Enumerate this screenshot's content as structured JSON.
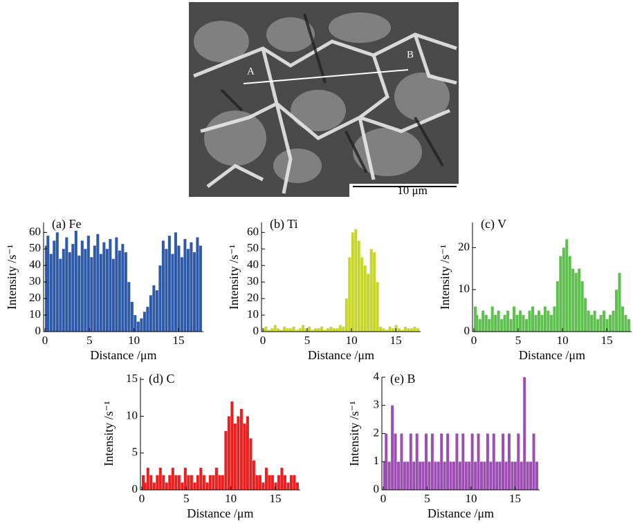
{
  "image": {
    "point_labels": [
      "A",
      "B"
    ],
    "scale_bar": "10 μm"
  },
  "chart_data": [
    {
      "type": "bar",
      "title": "(a) Fe",
      "x_label": "Distance /μm",
      "y_label": "Intensity /s⁻¹",
      "color": "#2e5aa8",
      "x": [
        0,
        0.35,
        0.7,
        1.05,
        1.4,
        1.75,
        2.1,
        2.45,
        2.8,
        3.15,
        3.5,
        3.85,
        4.2,
        4.55,
        4.9,
        5.25,
        5.6,
        5.95,
        6.3,
        6.65,
        7,
        7.35,
        7.7,
        8.05,
        8.4,
        8.75,
        9.1,
        9.45,
        9.8,
        10.15,
        10.5,
        10.85,
        11.2,
        11.55,
        11.9,
        12.25,
        12.6,
        12.95,
        13.3,
        13.65,
        14,
        14.35,
        14.7,
        15.05,
        15.4,
        15.75,
        16.1,
        16.45,
        16.8,
        17.15,
        17.5
      ],
      "values": [
        52,
        58,
        47,
        55,
        60,
        44,
        50,
        57,
        48,
        53,
        61,
        46,
        55,
        50,
        58,
        45,
        52,
        59,
        47,
        54,
        50,
        56,
        44,
        57,
        49,
        53,
        48,
        30,
        18,
        10,
        6,
        8,
        12,
        15,
        22,
        28,
        25,
        40,
        55,
        50,
        58,
        47,
        60,
        52,
        45,
        56,
        50,
        54,
        48,
        57,
        52
      ],
      "xlim": [
        0,
        17.8
      ],
      "ylim": [
        0,
        66
      ],
      "xticks": [
        0,
        5,
        10,
        15
      ],
      "yticks": [
        0,
        10,
        20,
        30,
        40,
        50,
        60
      ]
    },
    {
      "type": "bar",
      "title": "(b) Ti",
      "x_label": "Distance /μm",
      "y_label": "Intensity /s⁻¹",
      "color": "#c8d62a",
      "x": [
        0,
        0.35,
        0.7,
        1.05,
        1.4,
        1.75,
        2.1,
        2.45,
        2.8,
        3.15,
        3.5,
        3.85,
        4.2,
        4.55,
        4.9,
        5.25,
        5.6,
        5.95,
        6.3,
        6.65,
        7,
        7.35,
        7.7,
        8.05,
        8.4,
        8.75,
        9.1,
        9.45,
        9.8,
        10.15,
        10.5,
        10.85,
        11.2,
        11.55,
        11.9,
        12.25,
        12.6,
        12.95,
        13.3,
        13.65,
        14,
        14.35,
        14.7,
        15.05,
        15.4,
        15.75,
        16.1,
        16.45,
        16.8,
        17.15,
        17.5
      ],
      "values": [
        2,
        3,
        1,
        2,
        4,
        2,
        1,
        3,
        2,
        2,
        3,
        1,
        2,
        4,
        2,
        3,
        1,
        2,
        2,
        3,
        1,
        2,
        3,
        2,
        2,
        4,
        3,
        20,
        45,
        60,
        62,
        55,
        45,
        40,
        35,
        50,
        48,
        30,
        3,
        2,
        1,
        3,
        2,
        4,
        2,
        1,
        3,
        2,
        2,
        3,
        2
      ],
      "xlim": [
        0,
        17.8
      ],
      "ylim": [
        0,
        66
      ],
      "xticks": [
        0,
        5,
        10,
        15
      ],
      "yticks": [
        0,
        10,
        20,
        30,
        40,
        50,
        60
      ]
    },
    {
      "type": "bar",
      "title": "(c) V",
      "x_label": "Distance /μm",
      "y_label": "Intensity /s⁻¹",
      "color": "#5fbf4f",
      "x": [
        0,
        0.35,
        0.7,
        1.05,
        1.4,
        1.75,
        2.1,
        2.45,
        2.8,
        3.15,
        3.5,
        3.85,
        4.2,
        4.55,
        4.9,
        5.25,
        5.6,
        5.95,
        6.3,
        6.65,
        7,
        7.35,
        7.7,
        8.05,
        8.4,
        8.75,
        9.1,
        9.45,
        9.8,
        10.15,
        10.5,
        10.85,
        11.2,
        11.55,
        11.9,
        12.25,
        12.6,
        12.95,
        13.3,
        13.65,
        14,
        14.35,
        14.7,
        15.05,
        15.4,
        15.75,
        16.1,
        16.45,
        16.8,
        17.15,
        17.5
      ],
      "values": [
        6,
        4,
        3,
        5,
        4,
        3,
        6,
        4,
        5,
        3,
        4,
        5,
        3,
        6,
        4,
        5,
        4,
        3,
        5,
        6,
        4,
        5,
        4,
        6,
        5,
        4,
        6,
        12,
        18,
        20,
        22,
        18,
        15,
        14,
        15,
        12,
        8,
        5,
        4,
        5,
        3,
        4,
        5,
        3,
        4,
        5,
        10,
        14,
        6,
        4,
        3
      ],
      "xlim": [
        0,
        17.8
      ],
      "ylim": [
        0,
        26
      ],
      "xticks": [
        0,
        5,
        10,
        15
      ],
      "yticks": [
        0,
        10,
        20
      ]
    },
    {
      "type": "bar",
      "title": "(d) C",
      "x_label": "Distance /μm",
      "y_label": "Intensity /s⁻¹",
      "color": "#e8201f",
      "x": [
        0,
        0.35,
        0.7,
        1.05,
        1.4,
        1.75,
        2.1,
        2.45,
        2.8,
        3.15,
        3.5,
        3.85,
        4.2,
        4.55,
        4.9,
        5.25,
        5.6,
        5.95,
        6.3,
        6.65,
        7,
        7.35,
        7.7,
        8.05,
        8.4,
        8.75,
        9.1,
        9.45,
        9.8,
        10.15,
        10.5,
        10.85,
        11.2,
        11.55,
        11.9,
        12.25,
        12.6,
        12.95,
        13.3,
        13.65,
        14,
        14.35,
        14.7,
        15.05,
        15.4,
        15.75,
        16.1,
        16.45,
        16.8,
        17.15,
        17.5
      ],
      "values": [
        2,
        1,
        3,
        2,
        1,
        2,
        3,
        2,
        1,
        2,
        3,
        2,
        2,
        1,
        3,
        2,
        2,
        1,
        2,
        3,
        2,
        1,
        2,
        2,
        3,
        2,
        2,
        8,
        10,
        12,
        9,
        10,
        11,
        9,
        10,
        7,
        4,
        2,
        2,
        1,
        3,
        2,
        2,
        1,
        2,
        3,
        2,
        1,
        2,
        2,
        1
      ],
      "xlim": [
        0,
        17.8
      ],
      "ylim": [
        0,
        15.3
      ],
      "xticks": [
        0,
        5,
        10,
        15
      ],
      "yticks": [
        0,
        5,
        10,
        15
      ]
    },
    {
      "type": "bar",
      "title": "(e) B",
      "x_label": "Distance /μm",
      "y_label": "Intensity /s⁻¹",
      "color": "#9b4fb0",
      "x": [
        0,
        0.35,
        0.7,
        1.05,
        1.4,
        1.75,
        2.1,
        2.45,
        2.8,
        3.15,
        3.5,
        3.85,
        4.2,
        4.55,
        4.9,
        5.25,
        5.6,
        5.95,
        6.3,
        6.65,
        7,
        7.35,
        7.7,
        8.05,
        8.4,
        8.75,
        9.1,
        9.45,
        9.8,
        10.15,
        10.5,
        10.85,
        11.2,
        11.55,
        11.9,
        12.25,
        12.6,
        12.95,
        13.3,
        13.65,
        14,
        14.35,
        14.7,
        15.05,
        15.4,
        15.75,
        16.1,
        16.45,
        16.8,
        17.15,
        17.5
      ],
      "values": [
        1,
        2,
        1,
        3,
        2,
        1,
        2,
        1,
        1,
        2,
        1,
        2,
        1,
        1,
        2,
        1,
        2,
        1,
        1,
        2,
        1,
        2,
        1,
        1,
        2,
        1,
        2,
        1,
        1,
        2,
        1,
        2,
        1,
        1,
        2,
        1,
        2,
        1,
        1,
        2,
        1,
        2,
        1,
        1,
        2,
        1,
        4,
        1,
        1,
        2,
        1
      ],
      "xlim": [
        0,
        17.8
      ],
      "ylim": [
        0,
        4
      ],
      "xticks": [
        0,
        5,
        10,
        15
      ],
      "yticks": [
        0,
        1,
        2,
        3,
        4
      ]
    }
  ]
}
